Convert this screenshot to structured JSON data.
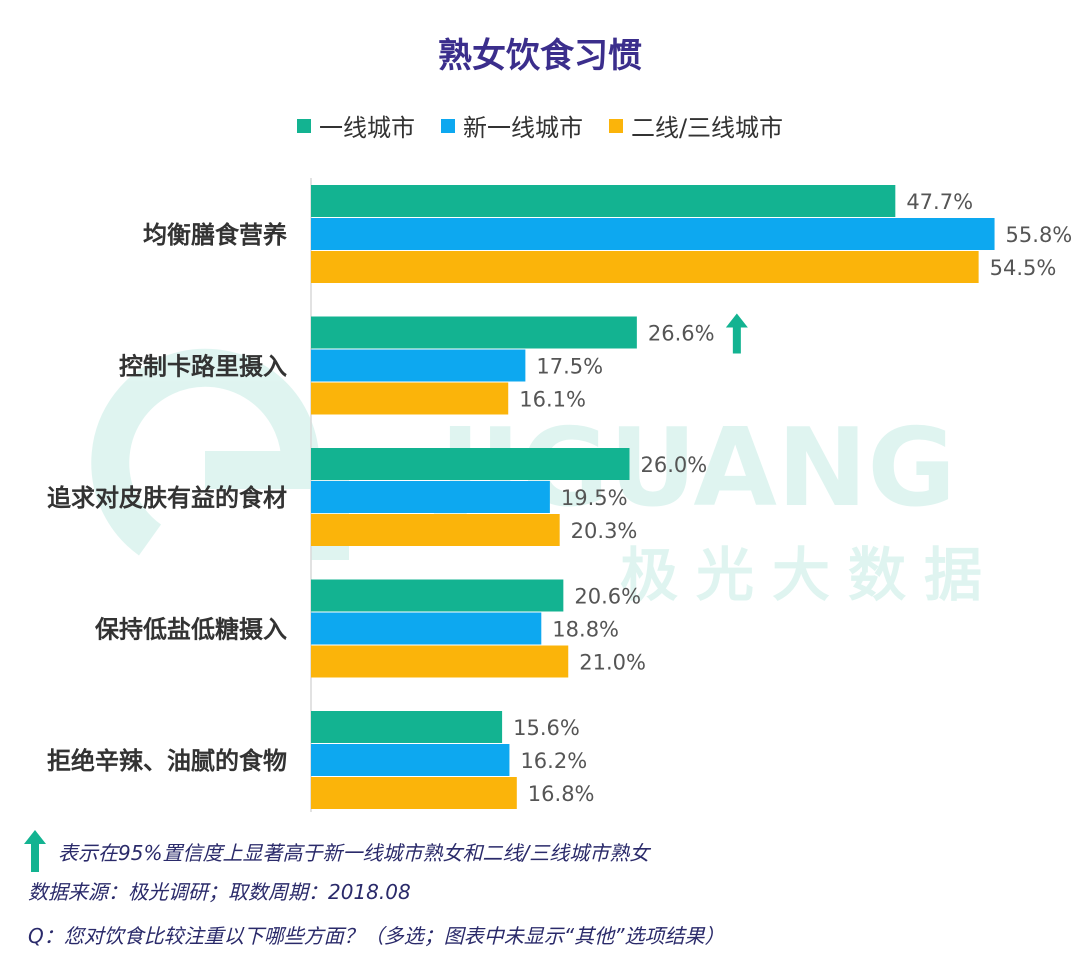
{
  "title": "熟女饮食习惯",
  "legend": [
    {
      "label": "一线城市",
      "color": "#13b391"
    },
    {
      "label": "新一线城市",
      "color": "#0da8f0"
    },
    {
      "label": "二线/三线城市",
      "color": "#fbb40a"
    }
  ],
  "watermark": {
    "logo_text": "JIGUANG",
    "cn_text": "极光大数据"
  },
  "notes": {
    "significance": "表示在95%置信度上显著高于新一线城市熟女和二线/三线城市熟女",
    "source": "数据来源：极光调研；取数周期：2018.08",
    "question": "Q：您对饮食比较注重以下哪些方面？（多选；图表中未显示“其他”选项结果）"
  },
  "chart_data": {
    "type": "bar",
    "orientation": "horizontal",
    "title": "熟女饮食习惯",
    "categories": [
      "均衡膳食营养",
      "控制卡路里摄入",
      "追求对皮肤有益的食材",
      "保持低盐低糖摄入",
      "拒绝辛辣、油腻的食物"
    ],
    "series": [
      {
        "name": "一线城市",
        "color": "#13b391",
        "values": [
          47.7,
          26.6,
          26.0,
          20.6,
          15.6
        ]
      },
      {
        "name": "新一线城市",
        "color": "#0da8f0",
        "values": [
          55.8,
          17.5,
          19.5,
          18.8,
          16.2
        ]
      },
      {
        "name": "二线/三线城市",
        "color": "#fbb40a",
        "values": [
          54.5,
          16.1,
          20.3,
          21.0,
          16.8
        ]
      }
    ],
    "value_labels": [
      [
        "47.7%",
        "55.8%",
        "54.5%"
      ],
      [
        "26.6%",
        "17.5%",
        "16.1%"
      ],
      [
        "26.0%",
        "19.5%",
        "20.3%"
      ],
      [
        "20.6%",
        "18.8%",
        "21.0%"
      ],
      [
        "15.6%",
        "16.2%",
        "16.8%"
      ]
    ],
    "significant_marker": {
      "category_index": 1,
      "series": "一线城市"
    },
    "xlim": [
      0,
      60
    ],
    "legend_position": "top-center",
    "grid": false
  }
}
